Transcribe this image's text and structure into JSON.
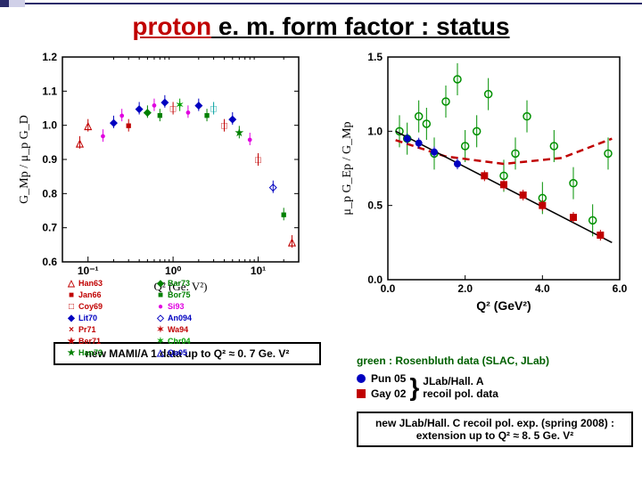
{
  "title": {
    "proton": "proton",
    "rest": " e. m. form factor : status"
  },
  "left_chart": {
    "type": "scatter",
    "xlabel": "Q²  (Ge. V²)",
    "ylabel": "G_Mp / μ_p G_D",
    "xscale": "log",
    "xlim": [
      0.05,
      30
    ],
    "ylim": [
      0.6,
      1.2
    ],
    "yticks": [
      0.6,
      0.7,
      0.8,
      0.9,
      1.0,
      1.1,
      1.2
    ],
    "xticks": [
      0.1,
      1,
      10
    ],
    "xticklabels": [
      "10⁻¹",
      "10⁰",
      "10¹"
    ],
    "background": "#ffffff",
    "axis_color": "#000000",
    "markers": [
      {
        "name": "Han63",
        "symbol": "△",
        "color": "#c00000"
      },
      {
        "name": "Jan66",
        "symbol": "■",
        "color": "#c00000"
      },
      {
        "name": "Coy69",
        "symbol": "□",
        "color": "#c00000"
      },
      {
        "name": "Lit70",
        "symbol": "◆",
        "color": "#0000c0"
      },
      {
        "name": "Pr71",
        "symbol": "×",
        "color": "#c00000"
      },
      {
        "name": "Ber71",
        "symbol": "★",
        "color": "#c00000"
      },
      {
        "name": "Han73",
        "symbol": "★",
        "color": "#008000"
      },
      {
        "name": "Bar73",
        "symbol": "◆",
        "color": "#008000"
      },
      {
        "name": "Bor75",
        "symbol": "■",
        "color": "#008000"
      },
      {
        "name": "Si93",
        "symbol": "●",
        "color": "#e000e0"
      },
      {
        "name": "An094",
        "symbol": "◇",
        "color": "#0000c0"
      },
      {
        "name": "Wa94",
        "symbol": "✶",
        "color": "#c00000"
      },
      {
        "name": "Chr04",
        "symbol": "✶",
        "color": "#00a000"
      },
      {
        "name": "Qa05",
        "symbol": "△",
        "color": "#0000c0"
      }
    ],
    "data_cloud": [
      {
        "x": 0.08,
        "y": 0.95,
        "c": "#c00000",
        "s": "△"
      },
      {
        "x": 0.1,
        "y": 1.0,
        "c": "#c00000",
        "s": "△"
      },
      {
        "x": 0.15,
        "y": 0.97,
        "c": "#e000e0",
        "s": "●"
      },
      {
        "x": 0.2,
        "y": 1.01,
        "c": "#0000c0",
        "s": "◆"
      },
      {
        "x": 0.25,
        "y": 1.03,
        "c": "#e000e0",
        "s": "●"
      },
      {
        "x": 0.3,
        "y": 1.0,
        "c": "#c00000",
        "s": "■"
      },
      {
        "x": 0.4,
        "y": 1.05,
        "c": "#0000c0",
        "s": "◆"
      },
      {
        "x": 0.5,
        "y": 1.04,
        "c": "#008000",
        "s": "◆"
      },
      {
        "x": 0.6,
        "y": 1.06,
        "c": "#e000e0",
        "s": "●"
      },
      {
        "x": 0.7,
        "y": 1.03,
        "c": "#008000",
        "s": "■"
      },
      {
        "x": 0.8,
        "y": 1.07,
        "c": "#0000c0",
        "s": "◆"
      },
      {
        "x": 1.0,
        "y": 1.05,
        "c": "#c00000",
        "s": "□"
      },
      {
        "x": 1.2,
        "y": 1.06,
        "c": "#00a000",
        "s": "✶"
      },
      {
        "x": 1.5,
        "y": 1.04,
        "c": "#e000e0",
        "s": "●"
      },
      {
        "x": 2.0,
        "y": 1.06,
        "c": "#0000c0",
        "s": "◆"
      },
      {
        "x": 2.5,
        "y": 1.03,
        "c": "#008000",
        "s": "■"
      },
      {
        "x": 3.0,
        "y": 1.05,
        "c": "#00a0a0",
        "s": "□"
      },
      {
        "x": 4.0,
        "y": 1.0,
        "c": "#c00000",
        "s": "□"
      },
      {
        "x": 5.0,
        "y": 1.02,
        "c": "#0000c0",
        "s": "◆"
      },
      {
        "x": 6.0,
        "y": 0.98,
        "c": "#008000",
        "s": "★"
      },
      {
        "x": 8.0,
        "y": 0.96,
        "c": "#e000e0",
        "s": "●"
      },
      {
        "x": 10,
        "y": 0.9,
        "c": "#c00000",
        "s": "□"
      },
      {
        "x": 15,
        "y": 0.82,
        "c": "#0000c0",
        "s": "◇"
      },
      {
        "x": 20,
        "y": 0.74,
        "c": "#008000",
        "s": "■"
      },
      {
        "x": 25,
        "y": 0.66,
        "c": "#c00000",
        "s": "△"
      }
    ]
  },
  "right_chart": {
    "type": "scatter",
    "xlabel": "Q²  (GeV²)",
    "ylabel": "μ_p G_Ep / G_Mp",
    "xlim": [
      0,
      6
    ],
    "ylim": [
      0,
      1.5
    ],
    "yticks": [
      0.0,
      0.5,
      1.0,
      1.5
    ],
    "xticks": [
      0.0,
      2.0,
      4.0,
      6.0
    ],
    "background": "#ffffff",
    "axis_color": "#000000",
    "green_points": [
      {
        "x": 0.3,
        "y": 1.0
      },
      {
        "x": 0.5,
        "y": 0.95
      },
      {
        "x": 0.8,
        "y": 1.1
      },
      {
        "x": 1.0,
        "y": 1.05
      },
      {
        "x": 1.2,
        "y": 0.85
      },
      {
        "x": 1.5,
        "y": 1.2
      },
      {
        "x": 1.8,
        "y": 1.35
      },
      {
        "x": 2.0,
        "y": 0.9
      },
      {
        "x": 2.3,
        "y": 1.0
      },
      {
        "x": 2.6,
        "y": 1.25
      },
      {
        "x": 3.0,
        "y": 0.7
      },
      {
        "x": 3.3,
        "y": 0.85
      },
      {
        "x": 3.6,
        "y": 1.1
      },
      {
        "x": 4.0,
        "y": 0.55
      },
      {
        "x": 4.3,
        "y": 0.9
      },
      {
        "x": 4.8,
        "y": 0.65
      },
      {
        "x": 5.3,
        "y": 0.4
      },
      {
        "x": 5.7,
        "y": 0.85
      }
    ],
    "green_color": "#009000",
    "red_dashed": [
      [
        0.2,
        0.94
      ],
      [
        1.5,
        0.83
      ],
      [
        3.0,
        0.78
      ],
      [
        4.5,
        0.82
      ],
      [
        5.8,
        0.95
      ]
    ],
    "red_color": "#c00000",
    "pol_data": [
      {
        "x": 0.5,
        "y": 0.95,
        "c": "#0000c0",
        "s": "●"
      },
      {
        "x": 0.8,
        "y": 0.92,
        "c": "#0000c0",
        "s": "●"
      },
      {
        "x": 1.2,
        "y": 0.86,
        "c": "#0000c0",
        "s": "●"
      },
      {
        "x": 1.8,
        "y": 0.78,
        "c": "#0000c0",
        "s": "●"
      },
      {
        "x": 2.5,
        "y": 0.7,
        "c": "#c00000",
        "s": "■"
      },
      {
        "x": 3.0,
        "y": 0.64,
        "c": "#c00000",
        "s": "■"
      },
      {
        "x": 3.5,
        "y": 0.57,
        "c": "#c00000",
        "s": "■"
      },
      {
        "x": 4.0,
        "y": 0.5,
        "c": "#c00000",
        "s": "■"
      },
      {
        "x": 4.8,
        "y": 0.42,
        "c": "#c00000",
        "s": "■"
      },
      {
        "x": 5.5,
        "y": 0.3,
        "c": "#c00000",
        "s": "■"
      }
    ],
    "fit_line": [
      [
        0.2,
        1.0
      ],
      [
        5.8,
        0.25
      ]
    ],
    "fit_color": "#000000"
  },
  "right_legend": {
    "green_note": "green : Rosenbluth data (SLAC, JLab)",
    "pun": {
      "label": "Pun 05",
      "color": "#0000c0",
      "shape": "circle"
    },
    "gay": {
      "label": "Gay 02",
      "color": "#c00000",
      "shape": "square"
    },
    "jlab_a": "JLab/Hall. A",
    "recoil": "recoil pol. data"
  },
  "note_left": "new MAMI/A 1 data up to Q² ≈ 0. 7 Ge. V²",
  "note_right": "new JLab/Hall. C recoil pol. exp. (spring 2008) : extension up to Q² ≈ 8. 5 Ge. V²"
}
